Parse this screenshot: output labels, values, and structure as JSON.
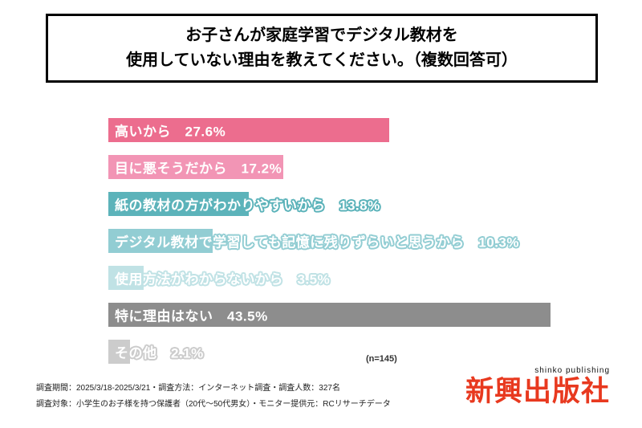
{
  "title": {
    "line1": "お子さんが家庭学習でデジタル教材を",
    "line2": "使用していない理由を教えてください。（複数回答可）"
  },
  "chart_data": {
    "type": "bar",
    "orientation": "horizontal",
    "title": "お子さんが家庭学習でデジタル教材を使用していない理由を教えてください。（複数回答可）",
    "categories": [
      "高いから",
      "目に悪そうだから",
      "紙の教材の方がわかりやすいから",
      "デジタル教材で学習しても記憶に残りずらいと思うから",
      "使用方法がわからないから",
      "特に理由はない",
      "その他"
    ],
    "values": [
      27.6,
      17.2,
      13.8,
      10.3,
      3.5,
      43.5,
      2.1
    ],
    "value_labels": [
      "27.6%",
      "17.2%",
      "13.8%",
      "10.3%",
      "3.5%",
      "43.5%",
      "2.1%"
    ],
    "bar_colors": [
      "#ec6d8e",
      "#f295b5",
      "#5cb3ba",
      "#92cdd3",
      "#c0e2e5",
      "#8d8d8d",
      "#cccccc"
    ],
    "label_text_color": "#ffffff",
    "xlim": [
      0,
      45
    ],
    "grid": false,
    "legend": "none",
    "sample_size_note": "(n=145)"
  },
  "footer": {
    "line1": "調査期間：2025/3/18-2025/3/21・調査方法：インターネット調査・調査人数：327名",
    "line2": "調査対象：小学生のお子様を持つ保護者（20代～50代男女）・モニター提供元：RCリサーチデータ"
  },
  "logo": {
    "tagline": "shinko publishing",
    "name": "新興出版社",
    "color": "#e8391f"
  }
}
